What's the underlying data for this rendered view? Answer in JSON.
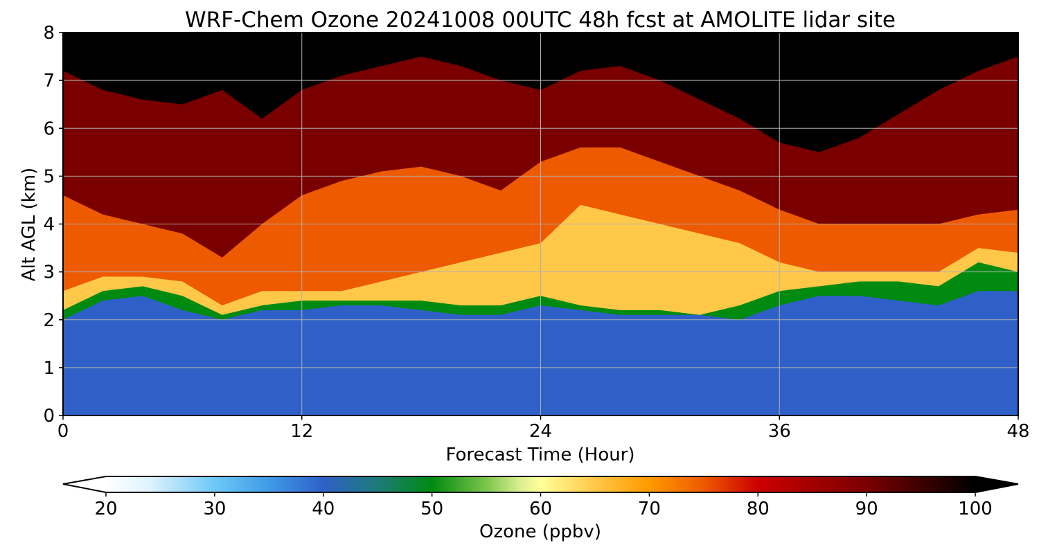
{
  "chart_data": {
    "type": "heatmap",
    "title": "WRF-Chem Ozone  20241008 00UTC 48h fcst at AMOLITE lidar site",
    "xlabel": "Forecast Time (Hour)",
    "ylabel": "Alt AGL (km)",
    "xlim": [
      0,
      48
    ],
    "ylim": [
      0,
      8
    ],
    "xticks": [
      0,
      12,
      24,
      36,
      48
    ],
    "yticks": [
      0,
      1,
      2,
      3,
      4,
      5,
      6,
      7,
      8
    ],
    "grid": true,
    "colorbar": {
      "label": "Ozone  (ppbv)",
      "range": [
        20,
        100
      ],
      "ticks": [
        20,
        30,
        40,
        50,
        60,
        70,
        80,
        90,
        100
      ],
      "extend": "both",
      "stops": [
        {
          "value": 20,
          "color": "#ffffff"
        },
        {
          "value": 24,
          "color": "#dff3fd"
        },
        {
          "value": 30,
          "color": "#6ec8f7"
        },
        {
          "value": 35,
          "color": "#3f9be6"
        },
        {
          "value": 40,
          "color": "#2f60c8"
        },
        {
          "value": 45,
          "color": "#1f7a7a"
        },
        {
          "value": 50,
          "color": "#008a10"
        },
        {
          "value": 55,
          "color": "#7cc64a"
        },
        {
          "value": 58,
          "color": "#d6ee90"
        },
        {
          "value": 60,
          "color": "#ffff99"
        },
        {
          "value": 65,
          "color": "#ffc848"
        },
        {
          "value": 70,
          "color": "#ff9900"
        },
        {
          "value": 75,
          "color": "#ee5a00"
        },
        {
          "value": 80,
          "color": "#cc0000"
        },
        {
          "value": 90,
          "color": "#7a0000"
        },
        {
          "value": 100,
          "color": "#000000"
        }
      ]
    },
    "x": [
      0,
      2,
      4,
      6,
      8,
      10,
      12,
      14,
      16,
      18,
      20,
      22,
      24,
      26,
      28,
      30,
      32,
      34,
      36,
      38,
      40,
      42,
      44,
      46,
      48
    ],
    "levels": {
      "surface_layer_top_km": [
        2.0,
        2.4,
        2.5,
        2.2,
        2.0,
        2.2,
        2.2,
        2.3,
        2.3,
        2.2,
        2.1,
        2.1,
        2.3,
        2.2,
        2.1,
        2.1,
        2.1,
        2.0,
        2.3,
        2.5,
        2.5,
        2.4,
        2.3,
        2.6,
        2.6
      ],
      "green_band_top_km": [
        2.2,
        2.6,
        2.7,
        2.5,
        2.1,
        2.3,
        2.4,
        2.4,
        2.4,
        2.4,
        2.3,
        2.3,
        2.5,
        2.3,
        2.2,
        2.2,
        2.1,
        2.3,
        2.6,
        2.7,
        2.8,
        2.8,
        2.7,
        3.2,
        3.0
      ],
      "yellow_top_km": [
        2.6,
        2.9,
        2.9,
        2.8,
        2.3,
        2.6,
        2.6,
        2.6,
        2.8,
        3.0,
        3.2,
        3.4,
        3.6,
        4.4,
        4.2,
        4.0,
        3.8,
        3.6,
        3.2,
        3.0,
        3.0,
        3.0,
        3.0,
        3.5,
        3.4
      ],
      "orange_top_km": [
        4.6,
        4.2,
        4.0,
        3.8,
        3.3,
        4.0,
        4.6,
        4.9,
        5.1,
        5.2,
        5.0,
        4.7,
        5.3,
        5.6,
        5.6,
        5.3,
        5.0,
        4.7,
        4.3,
        4.0,
        4.0,
        4.0,
        4.0,
        4.2,
        4.3
      ],
      "red_top_km": [
        7.2,
        6.8,
        6.6,
        6.5,
        6.8,
        6.2,
        6.8,
        7.1,
        7.3,
        7.5,
        7.3,
        7.0,
        6.8,
        7.2,
        7.3,
        7.0,
        6.6,
        6.2,
        5.7,
        5.5,
        5.8,
        6.3,
        6.8,
        7.2,
        7.5
      ]
    }
  }
}
